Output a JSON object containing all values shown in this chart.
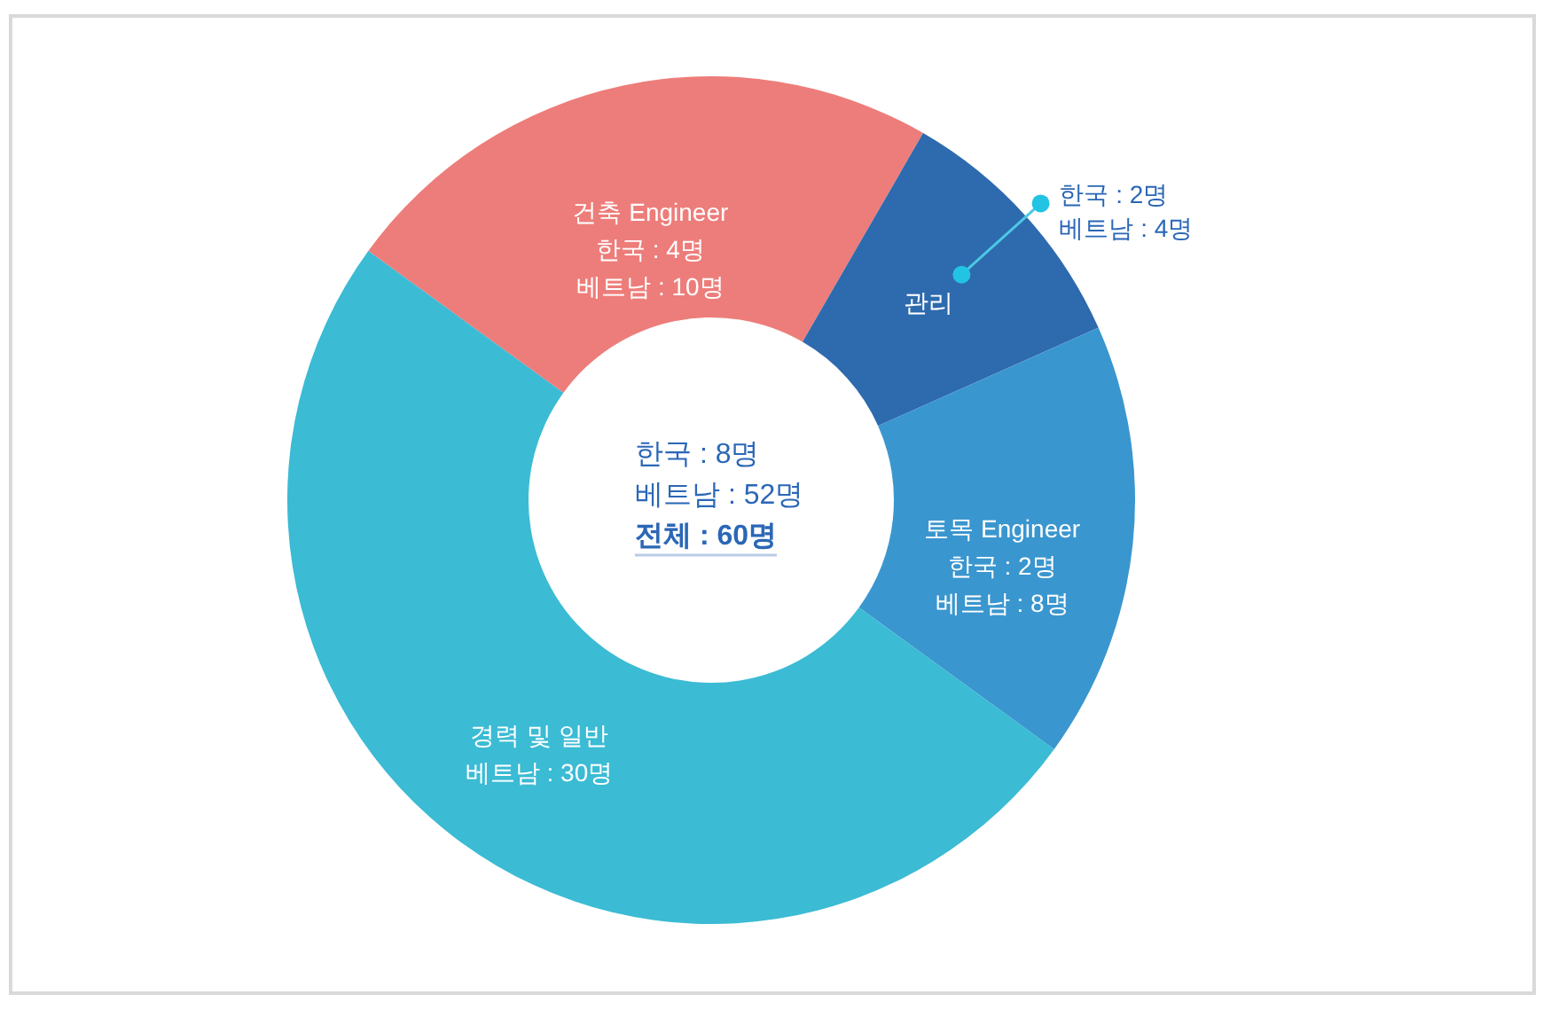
{
  "chart_data": {
    "type": "donut",
    "categories": [
      "건축 Engineer",
      "관리",
      "토목 Engineer",
      "경력 및 일반"
    ],
    "values": [
      14,
      6,
      10,
      30
    ],
    "colors": [
      "#ed7d7a",
      "#2d6aae",
      "#3a96cf",
      "#3bbbd4"
    ],
    "value_labels": [
      "한국 : 4명\n베트남 : 10명",
      "한국 : 2명\n베트남 : 4명",
      "한국 : 2명\n베트남 : 8명",
      "베트남 : 30명"
    ],
    "annotations": [
      "한국 : 8명",
      "베트남 : 52명",
      "전체 : 60명"
    ]
  }
}
